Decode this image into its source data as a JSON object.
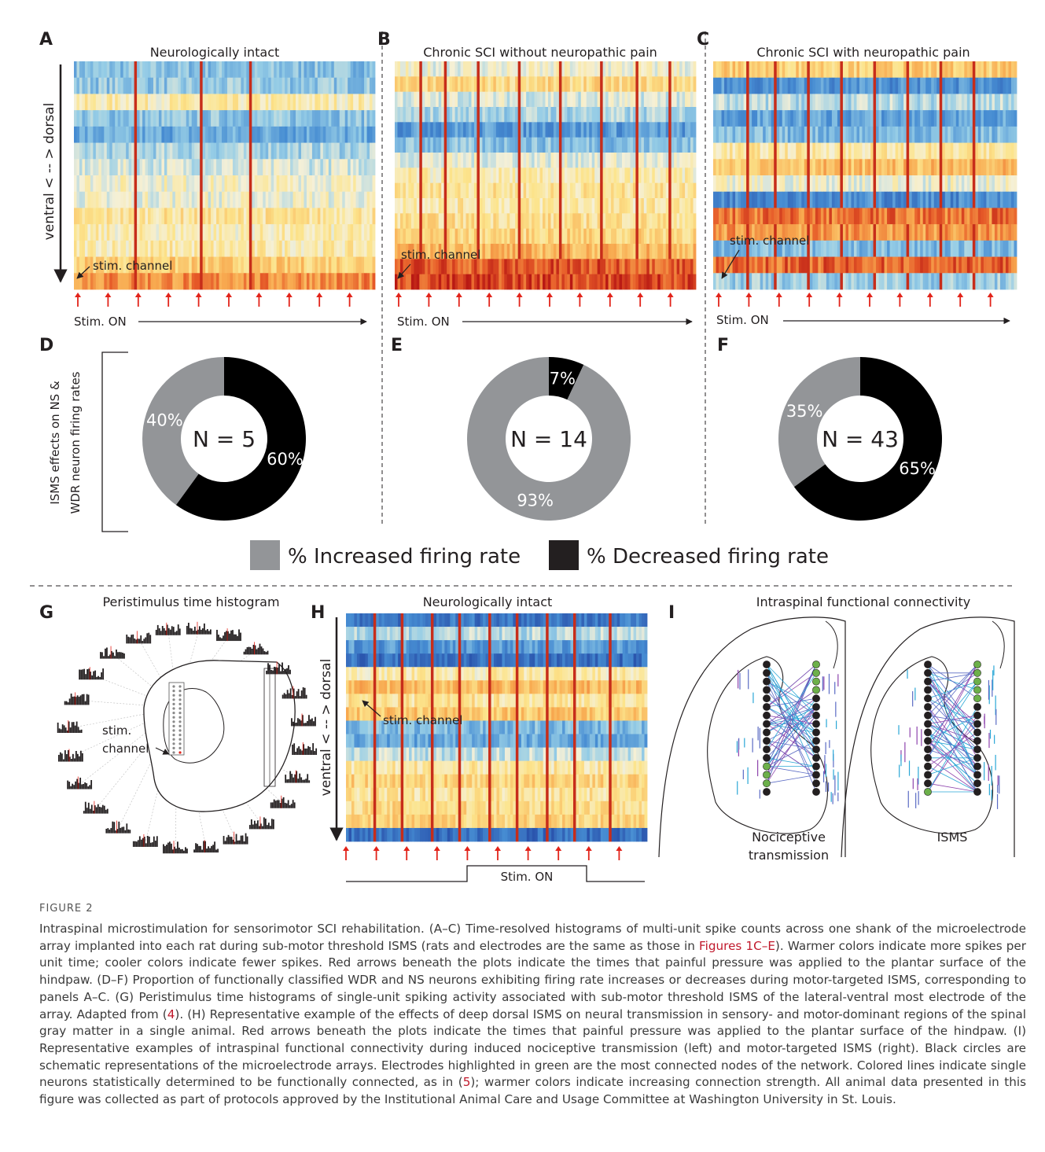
{
  "panels": {
    "A": {
      "letter": "A",
      "title": "Neurologically intact",
      "stim_label": "stim. channel",
      "stim_on": "Stim. ON"
    },
    "B": {
      "letter": "B",
      "title": "Chronic SCI without neuropathic pain",
      "stim_label": "stim. channel",
      "stim_on": "Stim. ON"
    },
    "C": {
      "letter": "C",
      "title": "Chronic SCI with neuropathic pain",
      "stim_label": "stim. channel",
      "stim_on": "Stim. ON"
    },
    "D": {
      "letter": "D"
    },
    "E": {
      "letter": "E"
    },
    "F": {
      "letter": "F"
    },
    "G": {
      "letter": "G",
      "title": "Peristimulus time histogram",
      "stim_label_1": "stim.",
      "stim_label_2": "channel"
    },
    "H": {
      "letter": "H",
      "title": "Neurologically intact",
      "stim_label": "stim. channel",
      "stim_on": "Stim. ON"
    },
    "I": {
      "letter": "I",
      "title": "Intraspinal functional connectivity",
      "left_label_1": "Nociceptive",
      "left_label_2": "transmission",
      "right_label": "ISMS"
    }
  },
  "y_axis_label": "ventral < -- > dorsal",
  "pie_axis_label_1": "ISMS effects on NS &",
  "pie_axis_label_2": "WDR neuron firing rates",
  "legend": {
    "increased": "% Increased firing rate",
    "decreased": "% Decreased firing rate"
  },
  "colors": {
    "increased": "#939598",
    "decreased": "#000000",
    "arrow": "#e2231a",
    "ref": "#c0182b"
  },
  "chart_data": [
    {
      "type": "pie",
      "panel": "D",
      "center_label": "N = 5",
      "labels": [
        "Increased",
        "Decreased"
      ],
      "values": [
        40,
        60
      ],
      "value_labels": [
        "40%",
        "60%"
      ]
    },
    {
      "type": "pie",
      "panel": "E",
      "center_label": "N = 14",
      "labels": [
        "Increased",
        "Decreased"
      ],
      "values": [
        93,
        7
      ],
      "value_labels": [
        "93%",
        "7%"
      ]
    },
    {
      "type": "pie",
      "panel": "F",
      "center_label": "N = 43",
      "labels": [
        "Increased",
        "Decreased"
      ],
      "values": [
        35,
        65
      ],
      "value_labels": [
        "35%",
        "65%"
      ]
    }
  ],
  "caption": {
    "label": "FIGURE 2",
    "text_1": "Intraspinal microstimulation for sensorimotor SCI rehabilitation. (A–C) Time-resolved histograms of multi-unit spike counts across one shank of the microelectrode array implanted into each rat during sub-motor threshold ISMS (rats and electrodes are the same as those in ",
    "ref_1": "Figures 1C–E",
    "text_2": "). Warmer colors indicate more spikes per unit time; cooler colors indicate fewer spikes. Red arrows beneath the plots indicate the times that painful pressure was applied to the plantar surface of the hindpaw. (D–F) Proportion of functionally classified WDR and NS neurons exhibiting firing rate increases or decreases during motor-targeted ISMS, corresponding to panels A–C. (G) Peristimulus time histograms of single-unit spiking activity associated with sub-motor threshold ISMS of the lateral-ventral most electrode of the array. Adapted from (",
    "ref_2": "4",
    "text_3": "). (H) Representative example of the effects of deep dorsal ISMS on neural transmission in sensory- and motor-dominant regions of the spinal gray matter in a single animal. Red arrows beneath the plots indicate the times that painful pressure was applied to the plantar surface of the hindpaw. (I) Representative examples of intraspinal functional connectivity during induced nociceptive transmission (left) and motor-targeted ISMS (right). Black circles are schematic representations of the microelectrode arrays. Electrodes highlighted in green are the most connected nodes of the network. Colored lines indicate single neurons statistically determined to be functionally connected, as in (",
    "ref_3": "5",
    "text_4": "); warmer colors indicate increasing connection strength. All animal data presented in this figure was collected as part of protocols approved by the Institutional Animal Care and Usage Committee at Washington University in St. Louis."
  }
}
